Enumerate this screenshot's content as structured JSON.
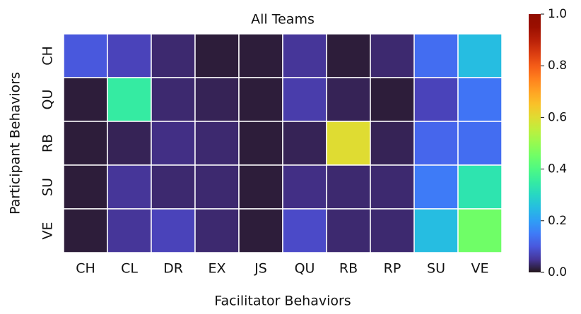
{
  "chart_data": {
    "type": "heatmap",
    "title": "All Teams",
    "x_label": "Facilitator Behaviors",
    "y_label": "Participant Behaviors",
    "x_categories": [
      "CH",
      "CL",
      "DR",
      "EX",
      "JS",
      "QU",
      "RB",
      "RP",
      "SU",
      "VE"
    ],
    "y_categories": [
      "CH",
      "QU",
      "RB",
      "SU",
      "VE"
    ],
    "values": [
      [
        0.1,
        0.07,
        0.03,
        0.01,
        0.01,
        0.05,
        0.01,
        0.03,
        0.13,
        0.25
      ],
      [
        0.01,
        0.35,
        0.03,
        0.02,
        0.01,
        0.06,
        0.02,
        0.01,
        0.07,
        0.14
      ],
      [
        0.01,
        0.02,
        0.04,
        0.03,
        0.01,
        0.02,
        0.6,
        0.02,
        0.12,
        0.13
      ],
      [
        0.01,
        0.05,
        0.03,
        0.03,
        0.01,
        0.04,
        0.03,
        0.03,
        0.15,
        0.33
      ],
      [
        0.01,
        0.05,
        0.07,
        0.03,
        0.01,
        0.08,
        0.03,
        0.03,
        0.25,
        0.45
      ]
    ],
    "colormap": "turbo",
    "zlim": [
      0,
      1
    ],
    "zticks": [
      {
        "value": 0,
        "label": "0.0"
      },
      {
        "value": 0.2,
        "label": "0.2"
      },
      {
        "value": 0.4,
        "label": "0.4"
      },
      {
        "value": 0.6,
        "label": "0.6"
      },
      {
        "value": 0.8,
        "label": "0.8"
      },
      {
        "value": 1,
        "label": "1.0"
      }
    ]
  }
}
